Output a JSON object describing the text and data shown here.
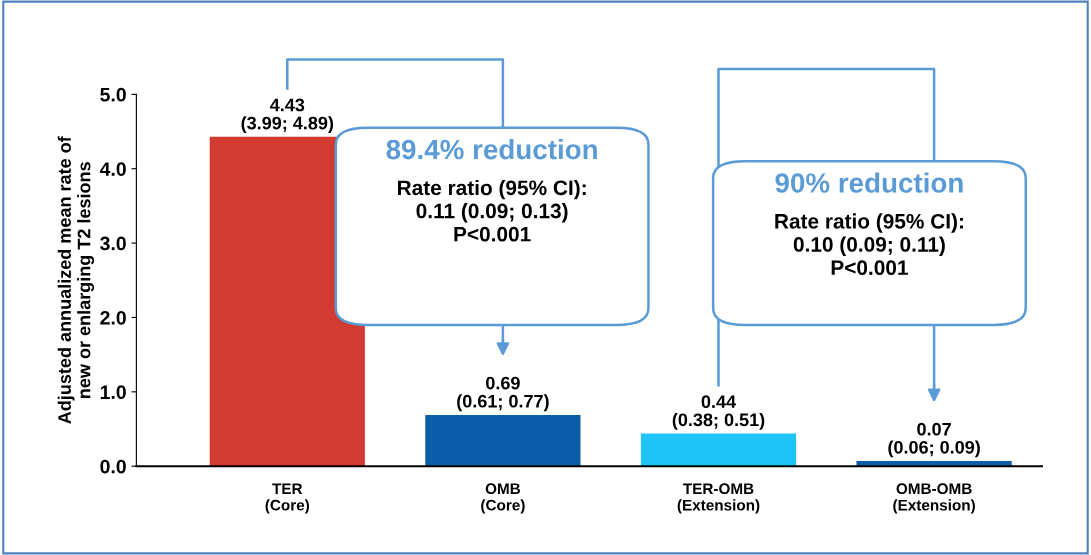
{
  "chart_data": {
    "type": "bar",
    "ylabel": "Adjusted annualized mean rate of\nnew or enlarging T2 lesions",
    "categories": [
      "TER\n(Core)",
      "OMB\n(Core)",
      "TER-OMB\n(Extension)",
      "OMB-OMB\n(Extension)"
    ],
    "values": [
      4.43,
      0.69,
      0.44,
      0.07
    ],
    "colors": [
      "#d13b31",
      "#0a5fa8",
      "#1ec3f7",
      "#0a5fa8"
    ],
    "value_labels": [
      "4.43\n(3.99; 4.89)",
      "0.69\n(0.61; 0.77)",
      "0.44\n(0.38; 0.51)",
      "0.07\n(0.06; 0.09)"
    ],
    "ylim": [
      0,
      5
    ],
    "yticks": [
      {
        "value": 0,
        "label": "0.0"
      },
      {
        "value": 1,
        "label": "1.0"
      },
      {
        "value": 2,
        "label": "2.0"
      },
      {
        "value": 3,
        "label": "3.0"
      },
      {
        "value": 4,
        "label": "4.0"
      },
      {
        "value": 5,
        "label": "5.0"
      }
    ],
    "annotations": [
      "89.4% reduction",
      "Rate ratio (95% CI):\n0.11 (0.09; 0.13)\nP<0.001",
      "90% reduction",
      "Rate ratio (95% CI):\n0.10 (0.09; 0.11)\nP<0.001"
    ],
    "grid": false,
    "legend": false
  }
}
